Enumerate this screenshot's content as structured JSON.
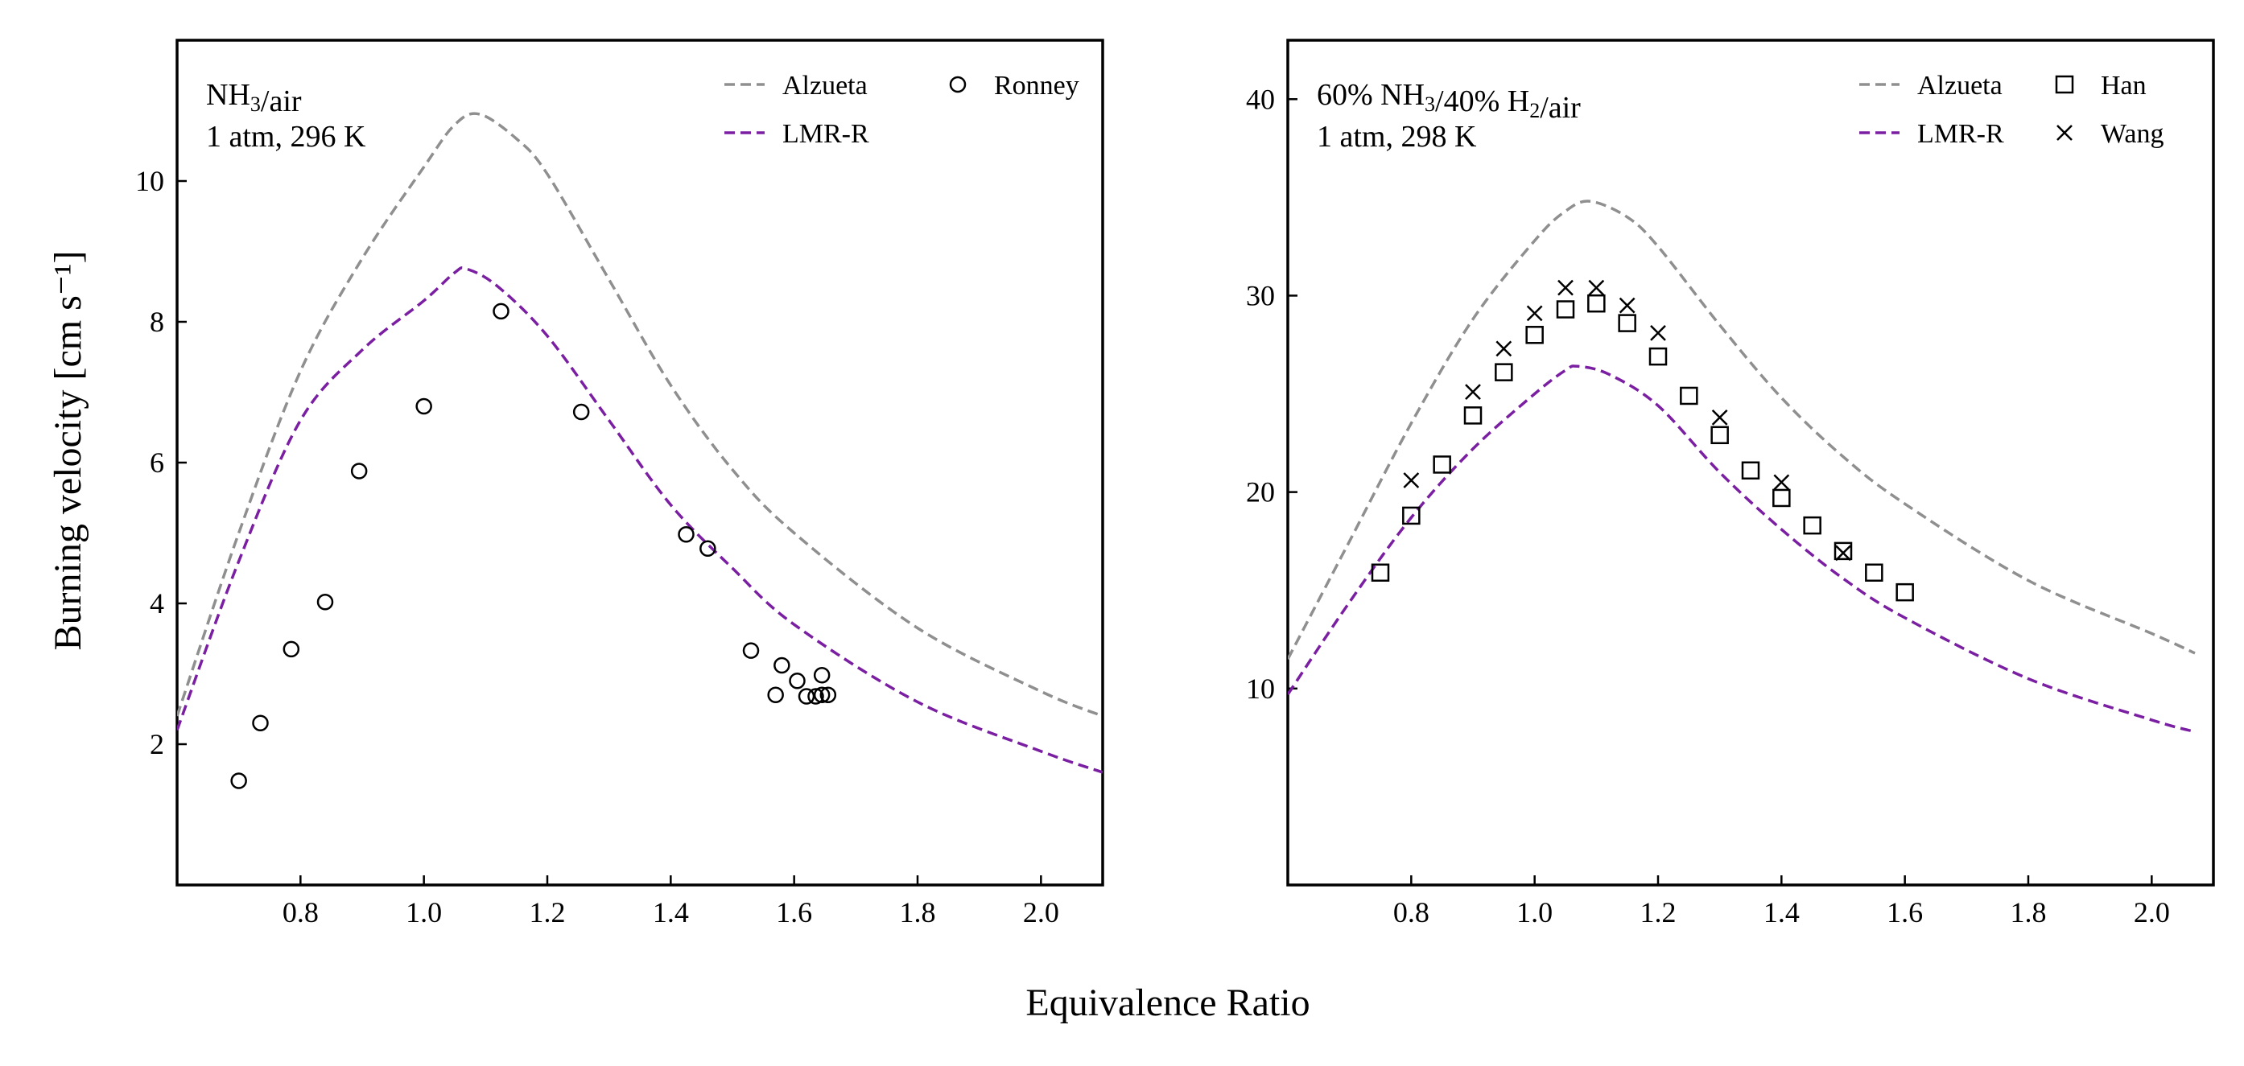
{
  "figure": {
    "ylabel": "Burning velocity [cm s⁻¹]",
    "xlabel": "Equivalence Ratio"
  },
  "chart_data": [
    {
      "type": "line",
      "title": "",
      "annotation": [
        "NH₃/air",
        "1 atm, 296 K"
      ],
      "xlim": [
        0.6,
        2.1
      ],
      "ylim": [
        0,
        12
      ],
      "xticks": [
        0.8,
        1.0,
        1.2,
        1.4,
        1.6,
        1.8,
        2.0
      ],
      "xtick_labels": [
        "0.8",
        "1.0",
        "1.2",
        "1.4",
        "1.6",
        "1.8",
        "2.0"
      ],
      "yticks": [
        2,
        4,
        6,
        8,
        10
      ],
      "ytick_labels": [
        "2",
        "4",
        "6",
        "8",
        "10"
      ],
      "grid": false,
      "legend_position": "top-right",
      "legend": [
        "Alzueta",
        "LMR-R",
        "Ronney"
      ],
      "series": [
        {
          "name": "Alzueta",
          "style": "dashed",
          "color": "#8f8f8f",
          "x": [
            0.6,
            0.7,
            0.8,
            0.9,
            1.0,
            1.05,
            1.09,
            1.15,
            1.2,
            1.3,
            1.4,
            1.5,
            1.6,
            1.8,
            2.0,
            2.1
          ],
          "y": [
            2.4,
            5.0,
            7.3,
            8.9,
            10.2,
            10.8,
            10.95,
            10.6,
            10.1,
            8.6,
            7.1,
            5.9,
            5.0,
            3.65,
            2.75,
            2.4
          ]
        },
        {
          "name": "LMR-R",
          "style": "dashed",
          "color": "#7b1fa2",
          "x": [
            0.6,
            0.7,
            0.8,
            0.9,
            1.0,
            1.05,
            1.07,
            1.12,
            1.2,
            1.3,
            1.4,
            1.5,
            1.6,
            1.8,
            2.0,
            2.1
          ],
          "y": [
            2.2,
            4.6,
            6.6,
            7.6,
            8.3,
            8.7,
            8.75,
            8.5,
            7.8,
            6.6,
            5.4,
            4.5,
            3.7,
            2.6,
            1.9,
            1.6
          ]
        },
        {
          "name": "Ronney",
          "style": "marker-circle",
          "color": "#000000",
          "x": [
            0.7,
            0.735,
            0.785,
            0.84,
            0.895,
            1.0,
            1.125,
            1.255,
            1.425,
            1.46,
            1.53,
            1.57,
            1.58,
            1.605,
            1.62,
            1.635,
            1.645,
            1.645,
            1.655
          ],
          "y": [
            1.48,
            2.3,
            3.35,
            4.02,
            5.88,
            6.8,
            8.15,
            6.72,
            4.98,
            4.78,
            3.33,
            2.7,
            3.12,
            2.9,
            2.68,
            2.68,
            2.98,
            2.7,
            2.7
          ]
        }
      ]
    },
    {
      "type": "line",
      "title": "",
      "annotation": [
        "60% NH₃/40% H₂/air",
        "1 atm, 298 K"
      ],
      "xlim": [
        0.6,
        2.1
      ],
      "ylim": [
        0,
        43
      ],
      "xticks": [
        0.8,
        1.0,
        1.2,
        1.4,
        1.6,
        1.8,
        2.0
      ],
      "xtick_labels": [
        "0.8",
        "1.0",
        "1.2",
        "1.4",
        "1.6",
        "1.8",
        "2.0"
      ],
      "yticks": [
        10,
        20,
        30,
        40
      ],
      "ytick_labels": [
        "10",
        "20",
        "30",
        "40"
      ],
      "grid": false,
      "legend_position": "top-right",
      "legend": [
        "Alzueta",
        "LMR-R",
        "Han",
        "Wang"
      ],
      "series": [
        {
          "name": "Alzueta",
          "style": "dashed",
          "color": "#8f8f8f",
          "x": [
            0.6,
            0.7,
            0.8,
            0.9,
            1.0,
            1.05,
            1.09,
            1.15,
            1.2,
            1.3,
            1.4,
            1.5,
            1.6,
            1.8,
            2.0,
            2.07
          ],
          "y": [
            11.5,
            17.5,
            23.5,
            28.8,
            32.8,
            34.3,
            34.8,
            34.0,
            32.5,
            28.5,
            24.8,
            21.8,
            19.4,
            15.5,
            12.8,
            11.8
          ]
        },
        {
          "name": "LMR-R",
          "style": "dashed",
          "color": "#7b1fa2",
          "x": [
            0.6,
            0.7,
            0.8,
            0.9,
            1.0,
            1.05,
            1.07,
            1.12,
            1.2,
            1.3,
            1.4,
            1.5,
            1.6,
            1.8,
            2.0,
            2.07
          ],
          "y": [
            9.7,
            14.4,
            18.7,
            22.2,
            25.0,
            26.2,
            26.4,
            26.0,
            24.4,
            21.0,
            18.1,
            15.6,
            13.6,
            10.5,
            8.4,
            7.8
          ]
        },
        {
          "name": "Han",
          "style": "marker-square",
          "color": "#000000",
          "x": [
            0.75,
            0.8,
            0.85,
            0.9,
            0.95,
            1.0,
            1.05,
            1.1,
            1.15,
            1.2,
            1.25,
            1.3,
            1.35,
            1.4,
            1.45,
            1.5,
            1.55,
            1.6
          ],
          "y": [
            15.9,
            18.8,
            21.4,
            23.9,
            26.1,
            28.0,
            29.3,
            29.6,
            28.6,
            26.9,
            24.9,
            22.9,
            21.1,
            19.7,
            18.3,
            17.0,
            15.9,
            14.9
          ]
        },
        {
          "name": "Wang",
          "style": "marker-x",
          "color": "#000000",
          "x": [
            0.8,
            0.9,
            0.95,
            1.0,
            1.05,
            1.1,
            1.15,
            1.2,
            1.3,
            1.4,
            1.5
          ],
          "y": [
            20.6,
            25.1,
            27.3,
            29.1,
            30.4,
            30.4,
            29.5,
            28.1,
            23.8,
            20.5,
            16.9
          ]
        }
      ]
    }
  ]
}
